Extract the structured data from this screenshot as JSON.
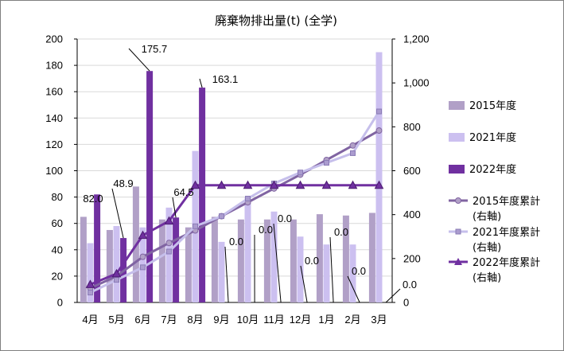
{
  "chart_data": {
    "type": "bar",
    "title": "廃棄物排出量(t) (全学)",
    "categories": [
      "4月",
      "5月",
      "6月",
      "7月",
      "8月",
      "9月",
      "10月",
      "11月",
      "12月",
      "1月",
      "2月",
      "3月"
    ],
    "ylim_left": [
      0,
      200
    ],
    "ylim_right": [
      0,
      1200
    ],
    "yticks_left": [
      "0",
      "20",
      "40",
      "60",
      "80",
      "100",
      "120",
      "140",
      "160",
      "180",
      "200"
    ],
    "yticks_right": [
      "0",
      "200",
      "400",
      "600",
      "800",
      "1,000",
      "1,200"
    ],
    "grid": true,
    "legend_position": "right",
    "bar_series": [
      {
        "name": "2015年度",
        "color": "#b1a0c7",
        "values": [
          65,
          55,
          88,
          63,
          57,
          65,
          63,
          63,
          63,
          67,
          66,
          68
        ]
      },
      {
        "name": "2021年度",
        "color": "#ccc0f0",
        "values": [
          45,
          58,
          57,
          72,
          115,
          46,
          80,
          69,
          50,
          44,
          44,
          190
        ]
      },
      {
        "name": "2022年度",
        "color": "#7030a0",
        "values": [
          82.0,
          48.9,
          175.7,
          64.5,
          163.1,
          0.0,
          0.0,
          0.0,
          0.0,
          0.0,
          0.0,
          0.0
        ]
      }
    ],
    "line_series": [
      {
        "name": "2015年度累計",
        "name_suffix": "(右軸)",
        "axis": "right",
        "color": "#8064a2",
        "marker": "circle",
        "values": [
          65,
          120,
          208,
          271,
          328,
          393,
          456,
          519,
          582,
          649,
          715,
          783
        ]
      },
      {
        "name": "2021年度累計",
        "name_suffix": "(右軸)",
        "axis": "right",
        "color": "#c6bfeb",
        "marker": "square",
        "values": [
          45,
          103,
          160,
          232,
          347,
          393,
          473,
          542,
          592,
          636,
          680,
          870
        ]
      },
      {
        "name": "2022年度累計",
        "name_suffix": "(右軸)",
        "axis": "right",
        "color": "#7030a0",
        "marker": "triangle",
        "values": [
          82,
          131,
          306,
          371,
          534,
          534,
          534,
          534,
          534,
          534,
          534,
          534
        ]
      }
    ],
    "data_labels_2022": [
      "82.0",
      "48.9",
      "175.7",
      "64.5",
      "163.1",
      "0.0",
      "0.0",
      "0.0",
      "0.0",
      "0.0",
      "0.0",
      "0.0"
    ]
  }
}
